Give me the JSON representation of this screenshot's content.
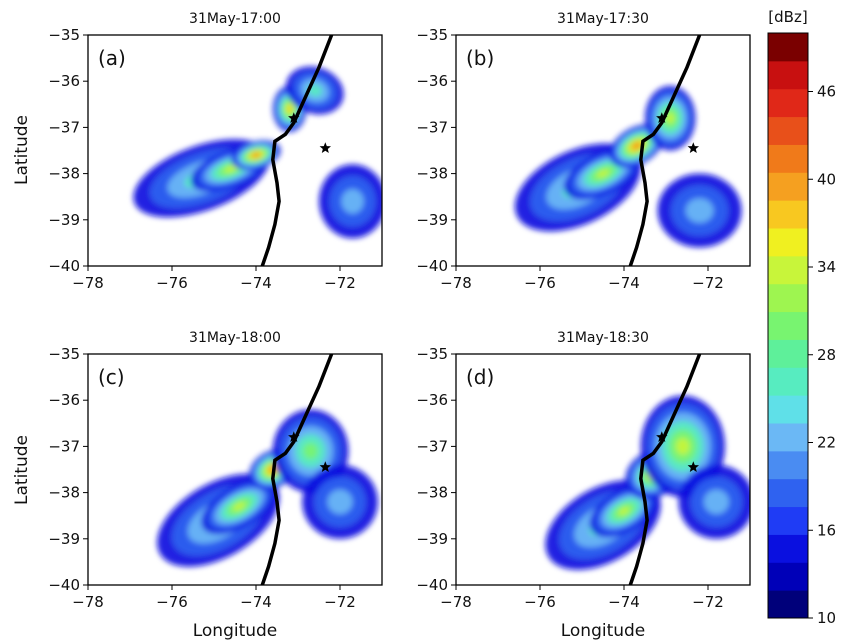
{
  "chart_data": {
    "type": "heatmap",
    "colorbar": {
      "unit": "[dBz]",
      "range": [
        10,
        50
      ],
      "step": 2,
      "ticks": [
        10,
        16,
        22,
        28,
        34,
        40,
        46
      ],
      "tick_labels": [
        "10",
        "16",
        "22",
        "28",
        "34",
        "40",
        "46"
      ],
      "colors": [
        "#00007a",
        "#0000b8",
        "#0a10e0",
        "#1f3cf5",
        "#2f62f0",
        "#4a8cf2",
        "#6bb8f5",
        "#5fe0e8",
        "#57ecc0",
        "#5ef09a",
        "#78f470",
        "#9ef550",
        "#c8f53a",
        "#f0f020",
        "#f8c820",
        "#f5a020",
        "#f07a1a",
        "#e8501a",
        "#e02818",
        "#c81010",
        "#7a0000"
      ]
    },
    "xlabel": "Longitude",
    "ylabel": "Latitude",
    "xlim": [
      -78,
      -71
    ],
    "ylim": [
      -40,
      -35
    ],
    "xticks": [
      -78,
      -76,
      -74,
      -72
    ],
    "xtick_labels": [
      "−78",
      "−76",
      "−74",
      "−72"
    ],
    "yticks": [
      -40,
      -39,
      -38,
      -37,
      -36,
      -35
    ],
    "ytick_labels": [
      "−40",
      "−39",
      "−38",
      "−37",
      "−36",
      "−35"
    ],
    "markers": [
      {
        "lon": -73.1,
        "lat": -36.8
      },
      {
        "lon": -72.35,
        "lat": -37.45
      }
    ],
    "panels": [
      {
        "label": "(a)",
        "title": "31May-17:00",
        "cells": [
          {
            "lon": -75.3,
            "lat": -38.1,
            "rx": 1.7,
            "ry": 0.7,
            "rot": -20,
            "dbz": 22
          },
          {
            "lon": -74.6,
            "lat": -37.9,
            "rx": 1.0,
            "ry": 0.4,
            "rot": -20,
            "dbz": 32
          },
          {
            "lon": -74.0,
            "lat": -37.6,
            "rx": 0.6,
            "ry": 0.3,
            "rot": -15,
            "dbz": 40
          },
          {
            "lon": -73.2,
            "lat": -36.6,
            "rx": 0.4,
            "ry": 0.5,
            "rot": 0,
            "dbz": 36
          },
          {
            "lon": -72.6,
            "lat": -36.2,
            "rx": 0.7,
            "ry": 0.5,
            "rot": 20,
            "dbz": 24
          },
          {
            "lon": -71.7,
            "lat": -38.6,
            "rx": 0.8,
            "ry": 0.8,
            "rot": 0,
            "dbz": 18
          }
        ]
      },
      {
        "label": "(b)",
        "title": "31May-17:30",
        "cells": [
          {
            "lon": -75.1,
            "lat": -38.3,
            "rx": 1.6,
            "ry": 0.8,
            "rot": -25,
            "dbz": 22
          },
          {
            "lon": -74.5,
            "lat": -38.0,
            "rx": 1.0,
            "ry": 0.45,
            "rot": -25,
            "dbz": 32
          },
          {
            "lon": -73.7,
            "lat": -37.4,
            "rx": 0.7,
            "ry": 0.4,
            "rot": -30,
            "dbz": 38
          },
          {
            "lon": -72.9,
            "lat": -36.8,
            "rx": 0.6,
            "ry": 0.7,
            "rot": 0,
            "dbz": 30
          },
          {
            "lon": -72.2,
            "lat": -38.8,
            "rx": 1.0,
            "ry": 0.8,
            "rot": 0,
            "dbz": 18
          }
        ]
      },
      {
        "label": "(c)",
        "title": "31May-18:00",
        "cells": [
          {
            "lon": -74.9,
            "lat": -38.6,
            "rx": 1.6,
            "ry": 0.8,
            "rot": -30,
            "dbz": 22
          },
          {
            "lon": -74.4,
            "lat": -38.3,
            "rx": 1.0,
            "ry": 0.45,
            "rot": -30,
            "dbz": 32
          },
          {
            "lon": -73.6,
            "lat": -37.5,
            "rx": 0.6,
            "ry": 0.4,
            "rot": -30,
            "dbz": 38
          },
          {
            "lon": -72.7,
            "lat": -37.1,
            "rx": 0.9,
            "ry": 0.9,
            "rot": 0,
            "dbz": 28
          },
          {
            "lon": -72.0,
            "lat": -38.2,
            "rx": 0.9,
            "ry": 0.8,
            "rot": 0,
            "dbz": 18
          }
        ]
      },
      {
        "label": "(d)",
        "title": "31May-18:30",
        "cells": [
          {
            "lon": -74.5,
            "lat": -38.7,
            "rx": 1.5,
            "ry": 0.8,
            "rot": -30,
            "dbz": 22
          },
          {
            "lon": -74.0,
            "lat": -38.4,
            "rx": 0.9,
            "ry": 0.45,
            "rot": -30,
            "dbz": 32
          },
          {
            "lon": -73.3,
            "lat": -37.6,
            "rx": 0.7,
            "ry": 0.5,
            "rot": -30,
            "dbz": 36
          },
          {
            "lon": -72.6,
            "lat": -37.0,
            "rx": 1.0,
            "ry": 1.1,
            "rot": 0,
            "dbz": 30
          },
          {
            "lon": -71.8,
            "lat": -38.2,
            "rx": 0.9,
            "ry": 0.8,
            "rot": 0,
            "dbz": 20
          }
        ]
      }
    ]
  }
}
